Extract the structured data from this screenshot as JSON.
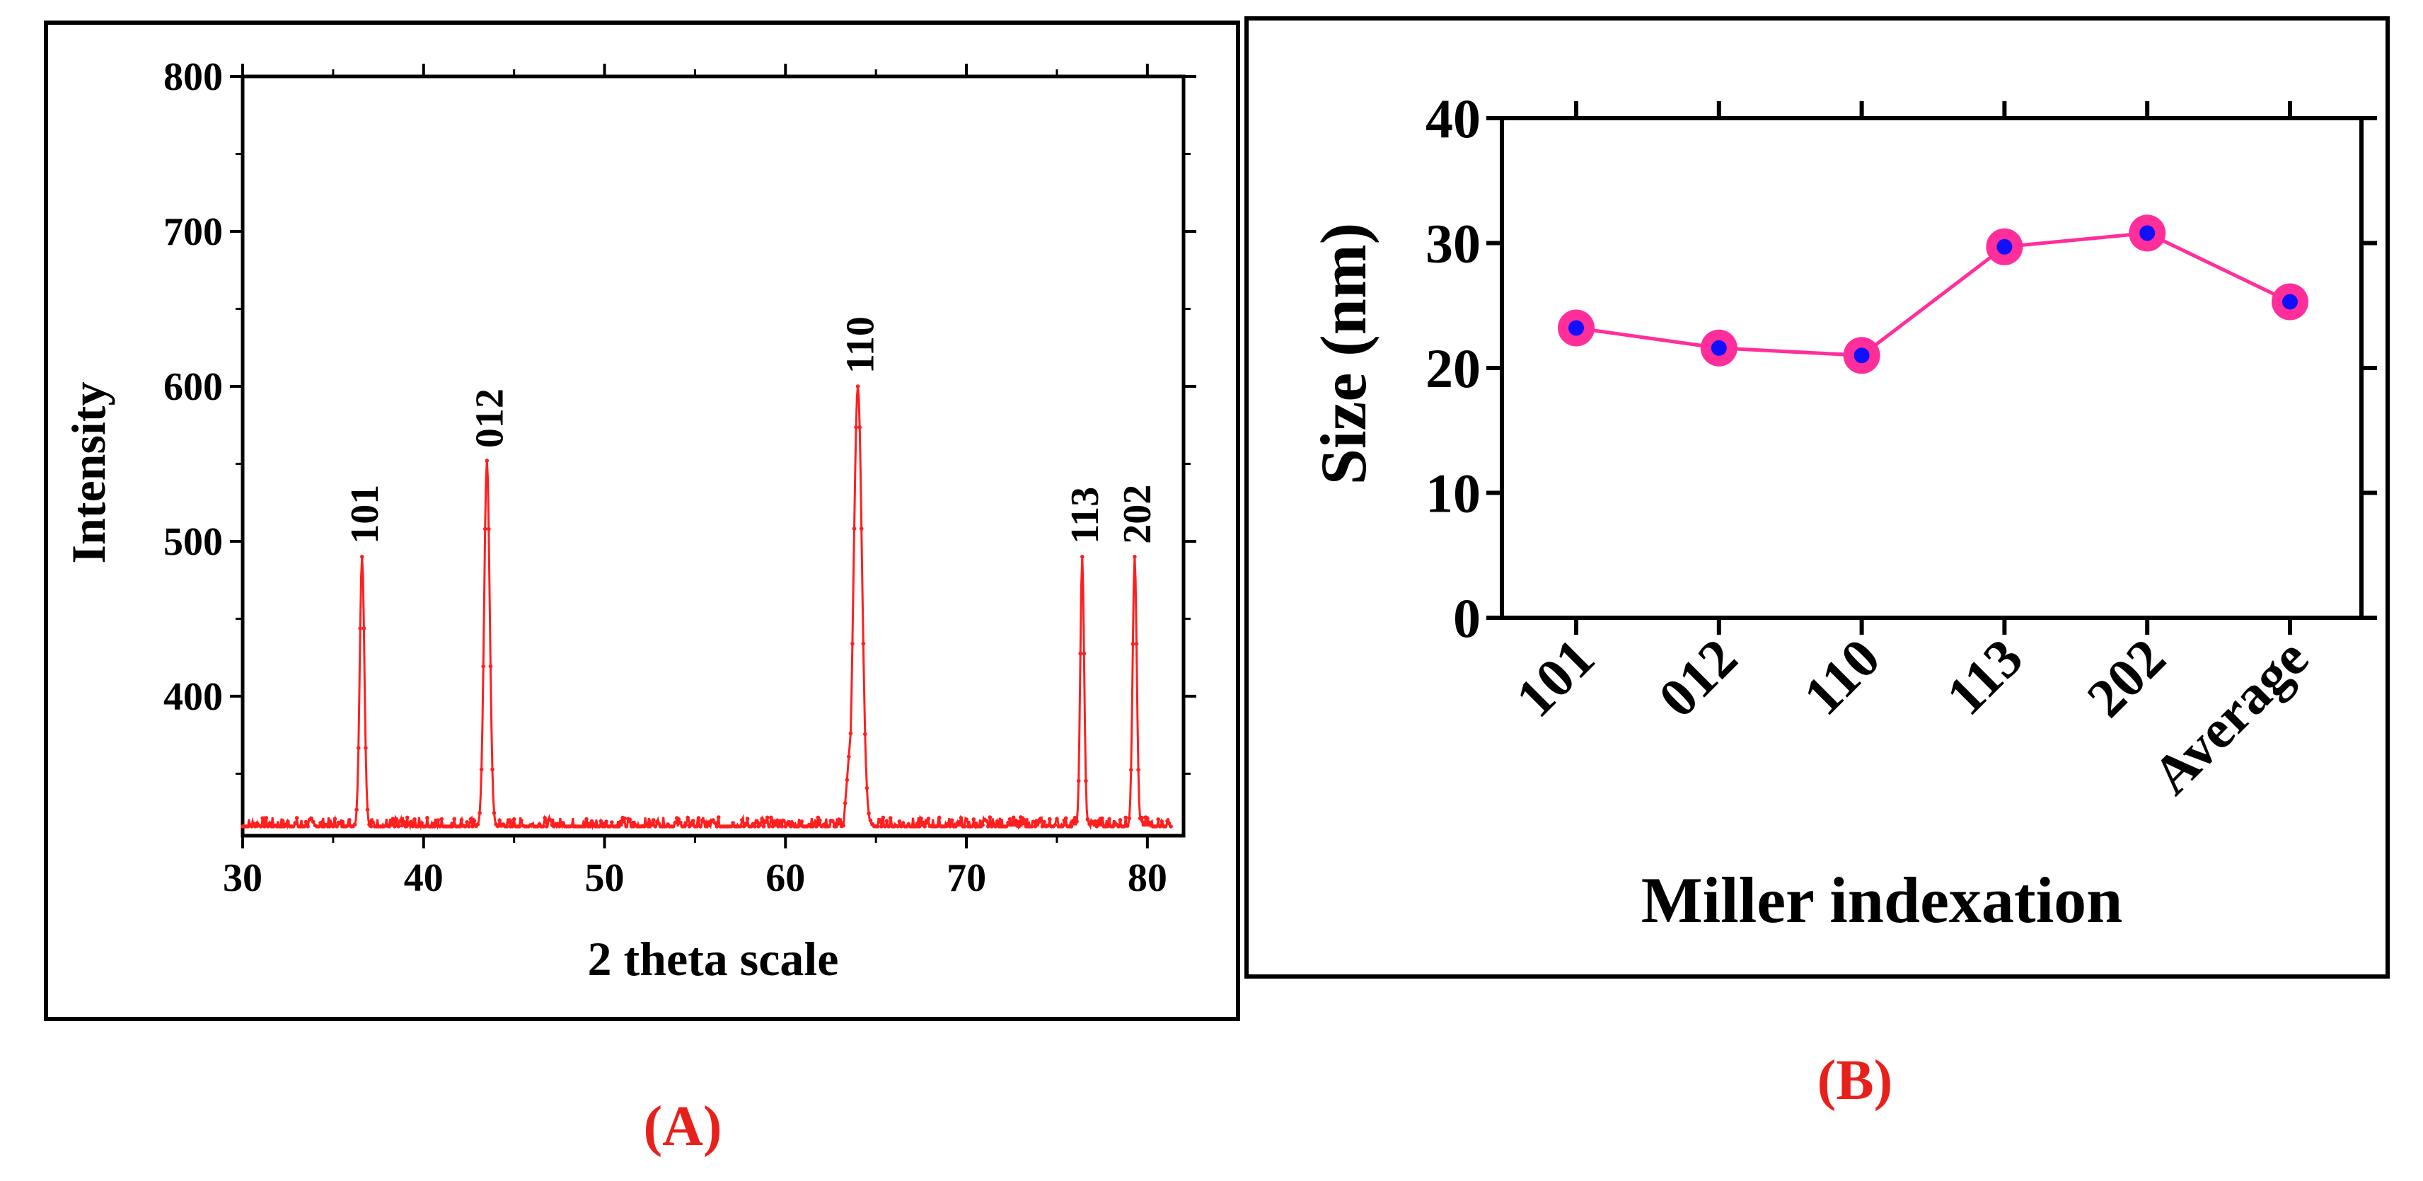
{
  "chart_data": [
    {
      "panel": "A",
      "type": "line",
      "title": "",
      "xlabel": "2 theta scale",
      "ylabel": "Intensity",
      "xlim": [
        30,
        82
      ],
      "ylim": [
        310,
        800
      ],
      "xticks": [
        "30",
        "40",
        "50",
        "60",
        "70",
        "80"
      ],
      "yticks": [
        "400",
        "500",
        "600",
        "700",
        "800"
      ],
      "baseline": 316,
      "line_color": "#ff1f1f",
      "peaks": [
        {
          "label": "101",
          "x": 36.6,
          "y": 490
        },
        {
          "label": "012",
          "x": 43.5,
          "y": 552
        },
        {
          "label": "110",
          "x": 64.0,
          "y": 600
        },
        {
          "label": "113",
          "x": 76.4,
          "y": 490
        },
        {
          "label": "202",
          "x": 79.3,
          "y": 490
        }
      ],
      "panel_label": "(A)"
    },
    {
      "panel": "B",
      "type": "line",
      "title": "",
      "xlabel": "Miller indexation",
      "ylabel": "Size (nm)",
      "ylim": [
        0,
        40
      ],
      "yticks": [
        "0",
        "10",
        "20",
        "30",
        "40"
      ],
      "categories": [
        "101",
        "012",
        "110",
        "113",
        "202",
        "Average"
      ],
      "values": [
        23.2,
        21.6,
        21.0,
        29.7,
        30.8,
        25.3
      ],
      "line_color": "#ff2e9a",
      "marker_color": "#ff2e9a",
      "marker_center_color": "#1010ff",
      "panel_label": "(B)"
    }
  ]
}
